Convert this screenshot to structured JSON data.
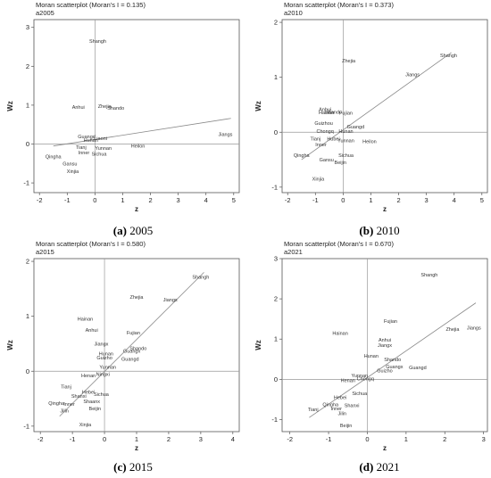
{
  "chart_data": [
    {
      "type": "scatter",
      "title": "Moran scatterplot (Moran's I = 0.135)",
      "subtitle": "a2005",
      "xlabel": "z",
      "ylabel": "Wz",
      "xlim": [
        -2.2,
        5.2
      ],
      "ylim": [
        -1.25,
        3.2
      ],
      "xticks": [
        -2,
        -1,
        0,
        1,
        2,
        3,
        4,
        5
      ],
      "yticks": [
        -1,
        0,
        1,
        2,
        3
      ],
      "fit_line": [
        [
          -1.5,
          -0.05
        ],
        [
          4.9,
          0.66
        ]
      ],
      "caption_letter": "(a)",
      "caption_year": "2005",
      "points": [
        {
          "label": "Shangh",
          "x": 0.1,
          "y": 2.65
        },
        {
          "label": "Jiangs",
          "x": 4.7,
          "y": 0.25
        },
        {
          "label": "Zhejia",
          "x": 0.35,
          "y": 0.97
        },
        {
          "label": "Shando",
          "x": 0.75,
          "y": 0.93
        },
        {
          "label": "Anhui",
          "x": -0.6,
          "y": 0.95
        },
        {
          "label": "Heilon",
          "x": 1.55,
          "y": -0.05
        },
        {
          "label": "Guangd",
          "x": -0.3,
          "y": 0.2
        },
        {
          "label": "Liaoni",
          "x": 0.2,
          "y": 0.15
        },
        {
          "label": "Hunan",
          "x": -0.15,
          "y": 0.1
        },
        {
          "label": "Yunnan",
          "x": 0.3,
          "y": -0.1
        },
        {
          "label": "Sichua",
          "x": 0.15,
          "y": -0.25
        },
        {
          "label": "Tianj",
          "x": -0.5,
          "y": -0.08
        },
        {
          "label": "Inner",
          "x": -0.4,
          "y": -0.22
        },
        {
          "label": "Gansu",
          "x": -0.9,
          "y": -0.5
        },
        {
          "label": "Qingha",
          "x": -1.5,
          "y": -0.32
        },
        {
          "label": "Xinjia",
          "x": -0.8,
          "y": -0.7
        }
      ]
    },
    {
      "type": "scatter",
      "title": "Moran scatterplot (Moran's I = 0.373)",
      "subtitle": "a2010",
      "xlabel": "z",
      "ylabel": "Wz",
      "xlim": [
        -2.2,
        5.2
      ],
      "ylim": [
        -1.1,
        2.05
      ],
      "xticks": [
        -2,
        -1,
        0,
        1,
        2,
        3,
        4,
        5
      ],
      "yticks": [
        -1,
        0,
        1,
        2
      ],
      "fit_line": [
        [
          -1.5,
          -0.5
        ],
        [
          3.9,
          1.45
        ]
      ],
      "caption_letter": "(b)",
      "caption_year": "2010",
      "points": [
        {
          "label": "Shangh",
          "x": 3.8,
          "y": 1.4
        },
        {
          "label": "Zhejia",
          "x": 0.2,
          "y": 1.3
        },
        {
          "label": "Jiangs",
          "x": 2.5,
          "y": 1.05
        },
        {
          "label": "Anhui",
          "x": -0.65,
          "y": 0.42
        },
        {
          "label": "Hainan",
          "x": -0.6,
          "y": 0.36
        },
        {
          "label": "Shando",
          "x": -0.35,
          "y": 0.37
        },
        {
          "label": "Fujian",
          "x": 0.1,
          "y": 0.35
        },
        {
          "label": "Guizhou",
          "x": -0.7,
          "y": 0.17
        },
        {
          "label": "Guangd",
          "x": 0.45,
          "y": 0.1
        },
        {
          "label": "Chongq",
          "x": -0.65,
          "y": 0.02
        },
        {
          "label": "Hunan",
          "x": 0.1,
          "y": 0.02
        },
        {
          "label": "Tianj",
          "x": -1.0,
          "y": -0.12
        },
        {
          "label": "Hubei",
          "x": -0.35,
          "y": -0.12
        },
        {
          "label": "Yunnan",
          "x": 0.1,
          "y": -0.15
        },
        {
          "label": "Heilon",
          "x": 0.95,
          "y": -0.17
        },
        {
          "label": "Inner",
          "x": -0.8,
          "y": -0.22
        },
        {
          "label": "Sichua",
          "x": 0.1,
          "y": -0.42
        },
        {
          "label": "Qingha",
          "x": -1.5,
          "y": -0.42
        },
        {
          "label": "Gansu",
          "x": -0.6,
          "y": -0.5
        },
        {
          "label": "Beijin",
          "x": -0.1,
          "y": -0.55
        },
        {
          "label": "Xinjia",
          "x": -0.9,
          "y": -0.85
        }
      ]
    },
    {
      "type": "scatter",
      "title": "Moran scatterplot (Moran's I = 0.580)",
      "subtitle": "a2015",
      "xlabel": "z",
      "ylabel": "Wz",
      "xlim": [
        -2.2,
        4.2
      ],
      "ylim": [
        -1.1,
        2.05
      ],
      "xticks": [
        -2,
        -1,
        0,
        1,
        2,
        3,
        4
      ],
      "yticks": [
        -1,
        0,
        1,
        2
      ],
      "fit_line": [
        [
          -1.4,
          -0.82
        ],
        [
          3.1,
          1.8
        ]
      ],
      "caption_letter": "(c)",
      "caption_year": "2015",
      "points": [
        {
          "label": "Shangh",
          "x": 3.0,
          "y": 1.72
        },
        {
          "label": "Zhejia",
          "x": 1.0,
          "y": 1.35
        },
        {
          "label": "Jiangs",
          "x": 2.05,
          "y": 1.3
        },
        {
          "label": "Hainan",
          "x": -0.6,
          "y": 0.95
        },
        {
          "label": "Anhui",
          "x": -0.4,
          "y": 0.75
        },
        {
          "label": "Fujian",
          "x": 0.9,
          "y": 0.7
        },
        {
          "label": "Jiangx",
          "x": -0.1,
          "y": 0.5
        },
        {
          "label": "Shando",
          "x": 1.05,
          "y": 0.42
        },
        {
          "label": "Hunan",
          "x": 0.05,
          "y": 0.32
        },
        {
          "label": "Guangx",
          "x": 0.85,
          "y": 0.37
        },
        {
          "label": "Guizho",
          "x": 0.0,
          "y": 0.25
        },
        {
          "label": "Guangd",
          "x": 0.8,
          "y": 0.22
        },
        {
          "label": "Yunnan",
          "x": 0.1,
          "y": 0.08
        },
        {
          "label": "Henan",
          "x": -0.5,
          "y": -0.08
        },
        {
          "label": "Ningxi",
          "x": -0.05,
          "y": -0.05
        },
        {
          "label": "Tianj",
          "x": -1.2,
          "y": -0.28
        },
        {
          "label": "Hebei",
          "x": -0.5,
          "y": -0.38
        },
        {
          "label": "Sichua",
          "x": -0.1,
          "y": -0.42
        },
        {
          "label": "Shanxi",
          "x": -0.8,
          "y": -0.45
        },
        {
          "label": "Qingha",
          "x": -1.5,
          "y": -0.58
        },
        {
          "label": "Inner",
          "x": -1.1,
          "y": -0.6
        },
        {
          "label": "Shaanx",
          "x": -0.4,
          "y": -0.55
        },
        {
          "label": "Beijin",
          "x": -0.3,
          "y": -0.68
        },
        {
          "label": "Jilin",
          "x": -1.25,
          "y": -0.72
        },
        {
          "label": "Xinjia",
          "x": -0.6,
          "y": -0.97
        }
      ]
    },
    {
      "type": "scatter",
      "title": "Moran scatterplot (Moran's I = 0.670)",
      "subtitle": "a2021",
      "xlabel": "z",
      "ylabel": "Wz",
      "xlim": [
        -2.2,
        3.1
      ],
      "ylim": [
        -1.3,
        3.0
      ],
      "xticks": [
        -2,
        -1,
        0,
        1,
        2,
        3
      ],
      "yticks": [
        -1,
        0,
        1,
        2,
        3
      ],
      "fit_line": [
        [
          -1.5,
          -0.95
        ],
        [
          2.8,
          1.9
        ]
      ],
      "caption_letter": "(d)",
      "caption_year": "2021",
      "points": [
        {
          "label": "Shangh",
          "x": 1.6,
          "y": 2.6
        },
        {
          "label": "Fujian",
          "x": 0.6,
          "y": 1.45
        },
        {
          "label": "Hainan",
          "x": -0.7,
          "y": 1.15
        },
        {
          "label": "Zhejia",
          "x": 2.2,
          "y": 1.25
        },
        {
          "label": "Jiangs",
          "x": 2.75,
          "y": 1.28
        },
        {
          "label": "Anhui",
          "x": 0.45,
          "y": 0.98
        },
        {
          "label": "Jiangx",
          "x": 0.45,
          "y": 0.85
        },
        {
          "label": "Hunan",
          "x": 0.1,
          "y": 0.58
        },
        {
          "label": "Shando",
          "x": 0.65,
          "y": 0.5
        },
        {
          "label": "Guangx",
          "x": 0.7,
          "y": 0.32
        },
        {
          "label": "Guizho",
          "x": 0.45,
          "y": 0.22
        },
        {
          "label": "Guangd",
          "x": 1.3,
          "y": 0.3
        },
        {
          "label": "Yunnan",
          "x": -0.2,
          "y": 0.1
        },
        {
          "label": "Henan",
          "x": -0.5,
          "y": -0.02
        },
        {
          "label": "Chongq",
          "x": -0.05,
          "y": 0.02
        },
        {
          "label": "Sichua",
          "x": -0.2,
          "y": -0.35
        },
        {
          "label": "Hebei",
          "x": -0.7,
          "y": -0.45
        },
        {
          "label": "Shanxi",
          "x": -0.4,
          "y": -0.65
        },
        {
          "label": "Tianj",
          "x": -1.4,
          "y": -0.75
        },
        {
          "label": "Qingha",
          "x": -0.95,
          "y": -0.62
        },
        {
          "label": "Inner",
          "x": -0.8,
          "y": -0.72
        },
        {
          "label": "Jilin",
          "x": -0.65,
          "y": -0.85
        },
        {
          "label": "Beijin",
          "x": -0.55,
          "y": -1.15
        }
      ]
    }
  ]
}
